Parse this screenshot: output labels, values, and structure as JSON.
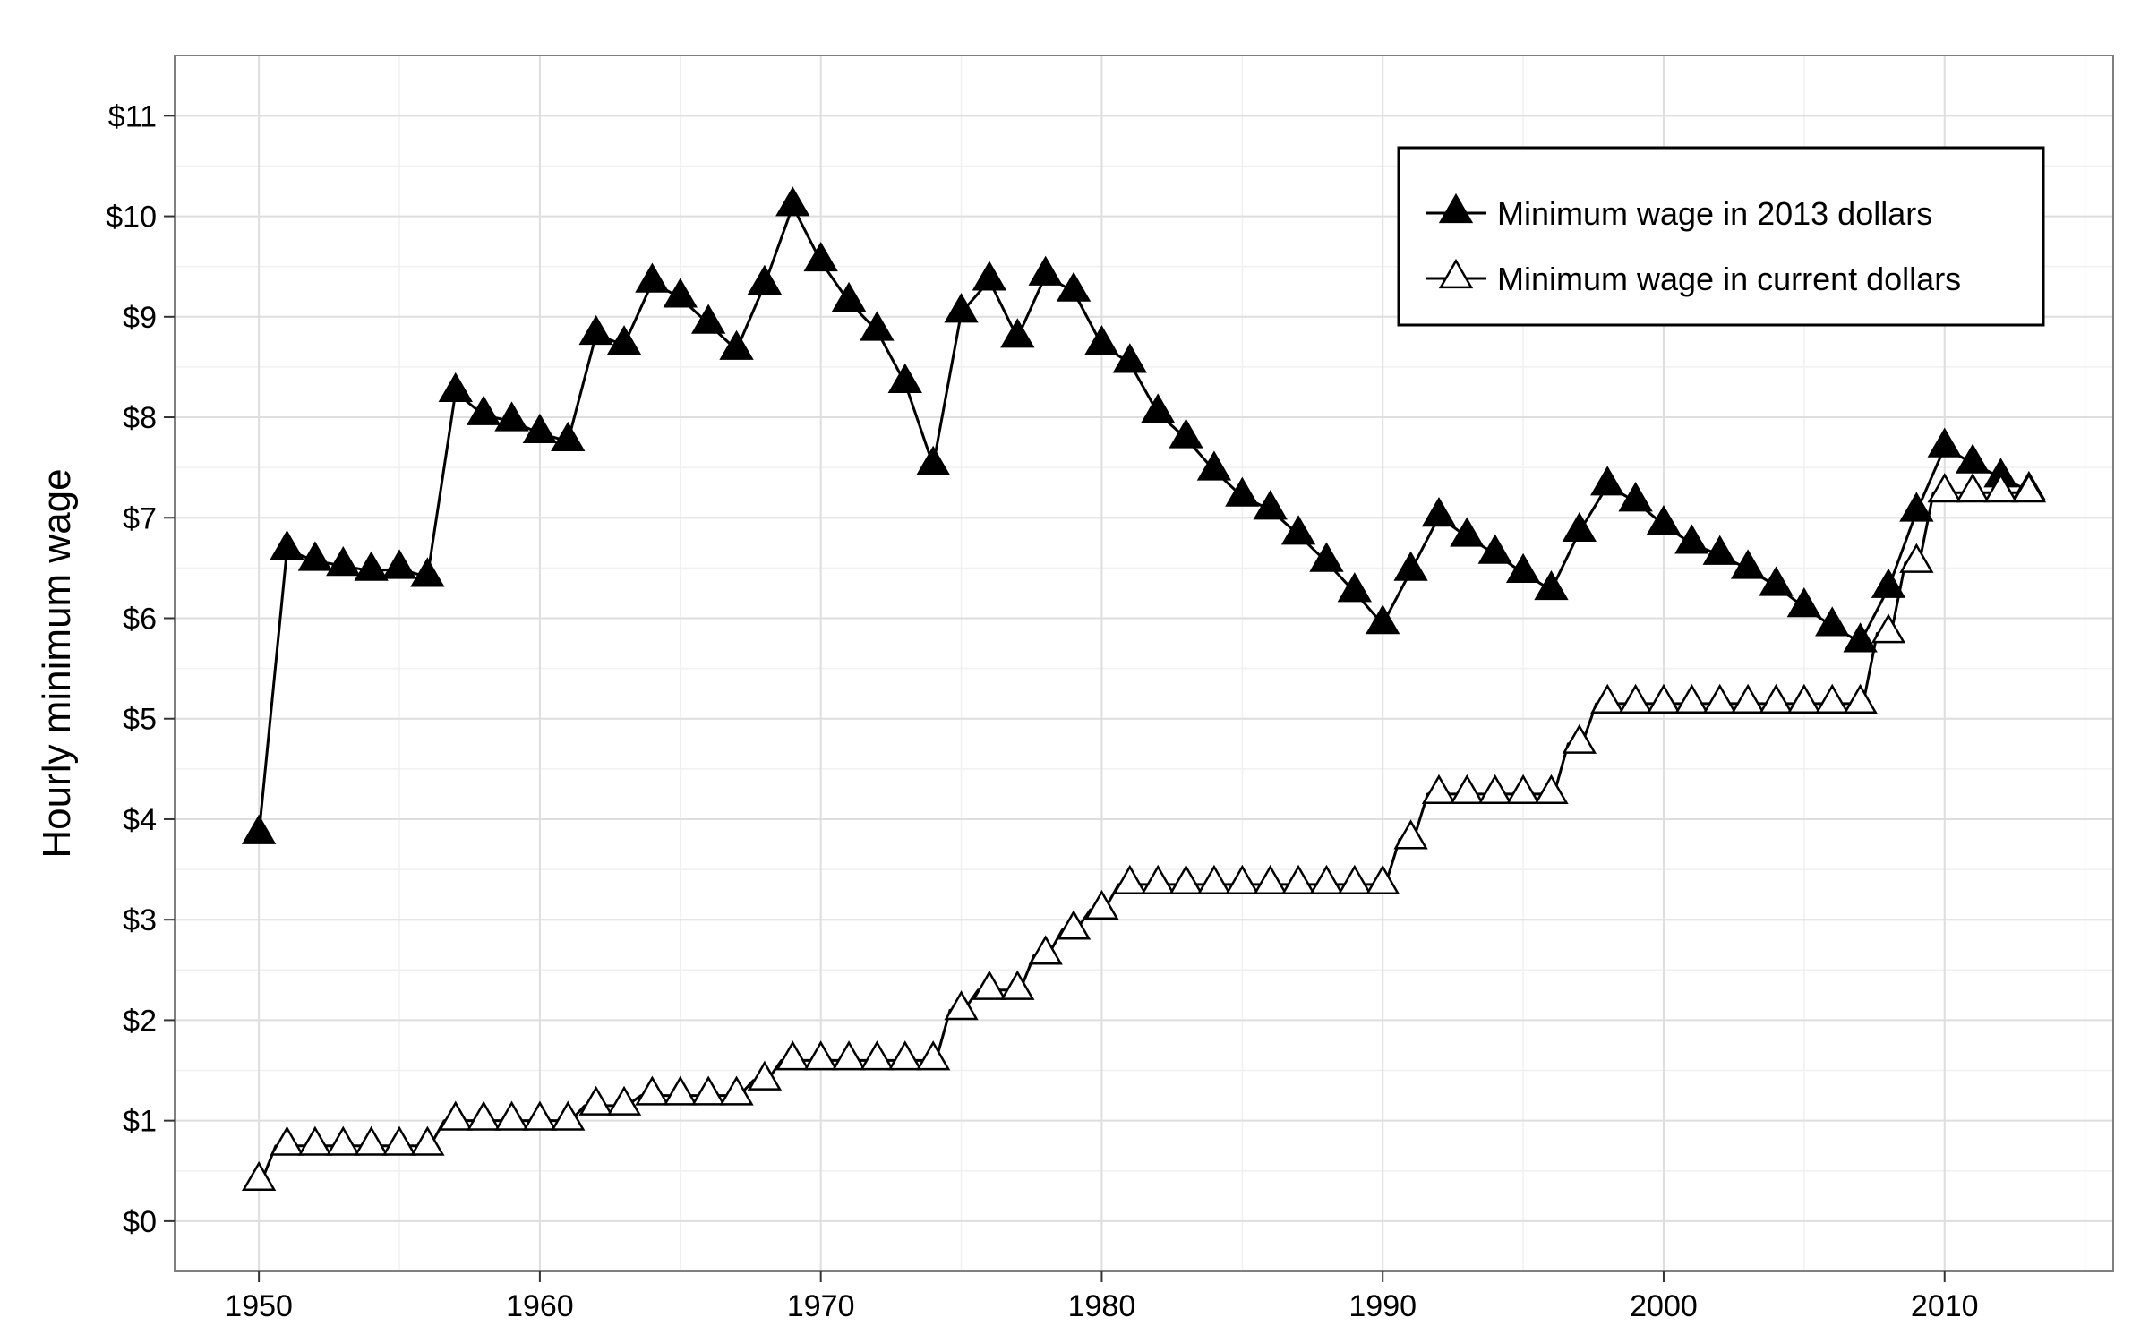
{
  "chart_data": {
    "type": "line",
    "title": "",
    "xlabel": "",
    "ylabel": "Hourly minimum wage",
    "xlim": [
      1947,
      2016
    ],
    "ylim": [
      -0.5,
      11.6
    ],
    "x_ticks": [
      1950,
      1960,
      1970,
      1980,
      1990,
      2000,
      2010
    ],
    "y_ticks": [
      0,
      1,
      2,
      3,
      4,
      5,
      6,
      7,
      8,
      9,
      10,
      11
    ],
    "y_tick_labels": [
      "$0",
      "$1",
      "$2",
      "$3",
      "$4",
      "$5",
      "$6",
      "$7",
      "$8",
      "$9",
      "$10",
      "$11"
    ],
    "x_minor_ticks": [
      1955,
      1965,
      1975,
      1985,
      1995,
      2005,
      2015
    ],
    "y_minor_ticks": [
      0.5,
      1.5,
      2.5,
      3.5,
      4.5,
      5.5,
      6.5,
      7.5,
      8.5,
      9.5,
      10.5
    ],
    "grid": true,
    "legend_position": "top-right",
    "x": [
      1950,
      1951,
      1952,
      1953,
      1954,
      1955,
      1956,
      1957,
      1958,
      1959,
      1960,
      1961,
      1962,
      1963,
      1964,
      1965,
      1966,
      1967,
      1968,
      1969,
      1970,
      1971,
      1972,
      1973,
      1974,
      1975,
      1976,
      1977,
      1978,
      1979,
      1980,
      1981,
      1982,
      1983,
      1984,
      1985,
      1986,
      1987,
      1988,
      1989,
      1990,
      1991,
      1992,
      1993,
      1994,
      1995,
      1996,
      1997,
      1998,
      1999,
      2000,
      2001,
      2002,
      2003,
      2004,
      2005,
      2006,
      2007,
      2008,
      2009,
      2010,
      2011,
      2012,
      2013
    ],
    "series": [
      {
        "name": "Minimum wage in 2013 dollars",
        "marker": "filled-triangle",
        "values": [
          3.85,
          6.68,
          6.57,
          6.52,
          6.47,
          6.49,
          6.41,
          8.25,
          8.02,
          7.96,
          7.84,
          7.76,
          8.82,
          8.72,
          9.34,
          9.19,
          8.93,
          8.67,
          9.32,
          10.1,
          9.55,
          9.15,
          8.86,
          8.34,
          7.52,
          9.04,
          9.36,
          8.79,
          9.41,
          9.25,
          8.72,
          8.54,
          8.04,
          7.79,
          7.47,
          7.21,
          7.08,
          6.83,
          6.56,
          6.26,
          5.94,
          6.47,
          7.01,
          6.81,
          6.64,
          6.45,
          6.28,
          6.86,
          7.32,
          7.16,
          6.93,
          6.74,
          6.63,
          6.49,
          6.32,
          6.11,
          5.92,
          5.76,
          6.3,
          7.06,
          7.7,
          7.54,
          7.4,
          7.27
        ]
      },
      {
        "name": "Minimum wage in current dollars",
        "marker": "open-triangle",
        "values": [
          0.4,
          0.75,
          0.75,
          0.75,
          0.75,
          0.75,
          0.75,
          1.0,
          1.0,
          1.0,
          1.0,
          1.0,
          1.15,
          1.15,
          1.25,
          1.25,
          1.25,
          1.25,
          1.4,
          1.6,
          1.6,
          1.6,
          1.6,
          1.6,
          1.6,
          2.1,
          2.3,
          2.3,
          2.65,
          2.9,
          3.1,
          3.35,
          3.35,
          3.35,
          3.35,
          3.35,
          3.35,
          3.35,
          3.35,
          3.35,
          3.35,
          3.8,
          4.25,
          4.25,
          4.25,
          4.25,
          4.25,
          4.75,
          5.15,
          5.15,
          5.15,
          5.15,
          5.15,
          5.15,
          5.15,
          5.15,
          5.15,
          5.15,
          5.85,
          6.55,
          7.25,
          7.25,
          7.25,
          7.25
        ]
      }
    ]
  }
}
